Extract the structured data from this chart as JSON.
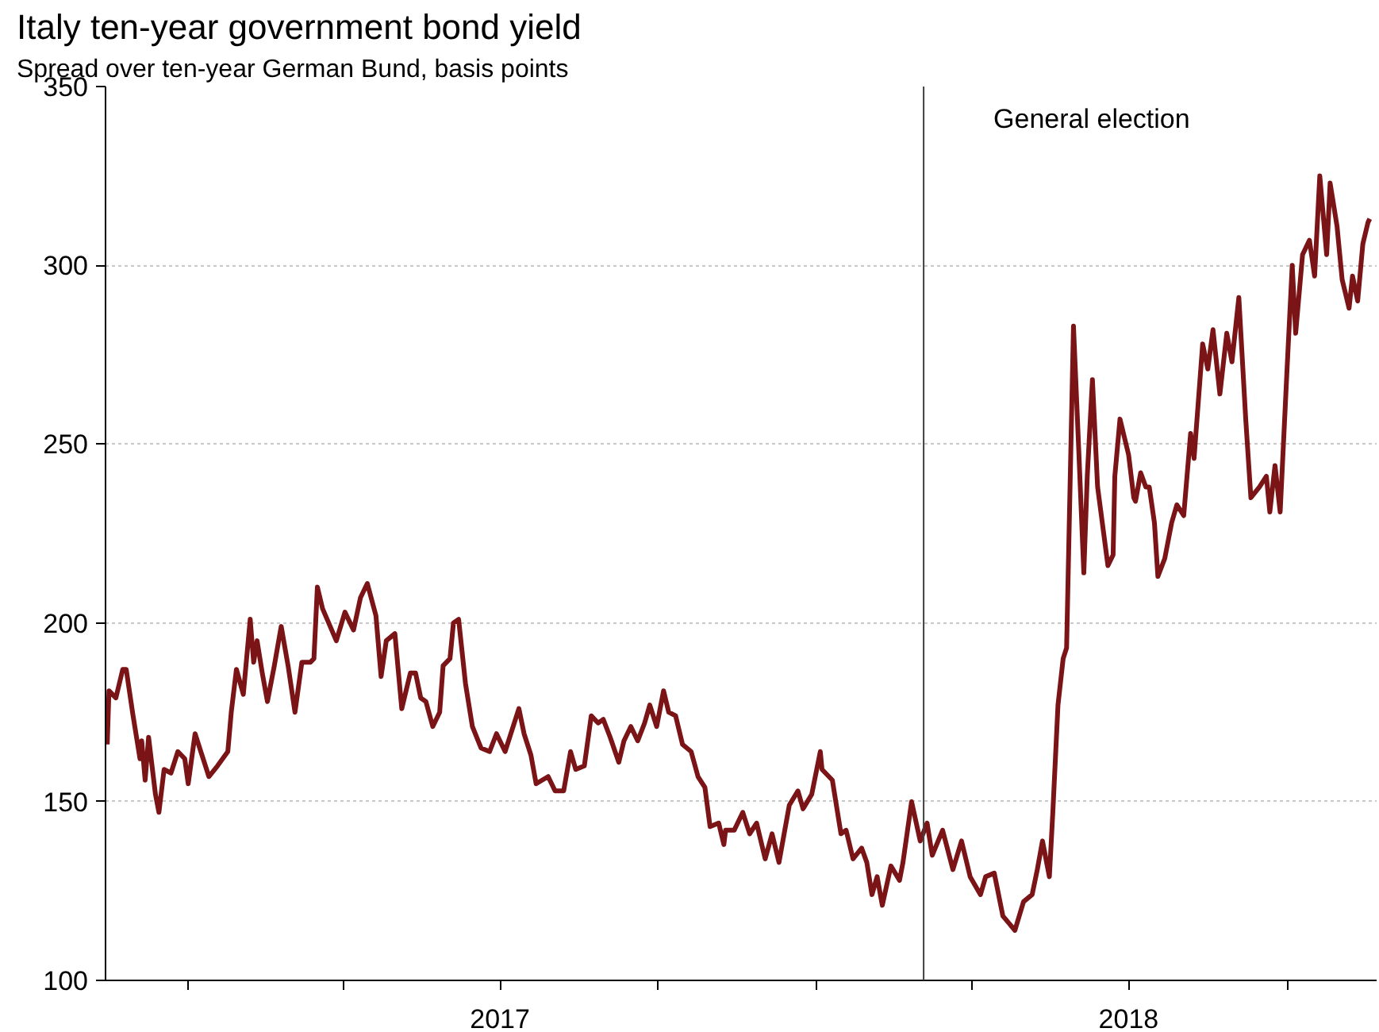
{
  "chart_data": {
    "type": "line",
    "title": "Italy ten-year government bond yield",
    "subtitle": "Spread over ten-year German Bund, basis points",
    "x": [
      "2016-11-15",
      "2016-11-16",
      "2016-11-20",
      "2016-11-24",
      "2016-11-26",
      "2016-11-30",
      "2016-12-04",
      "2016-12-05",
      "2016-12-07",
      "2016-12-09",
      "2016-12-13",
      "2016-12-15",
      "2016-12-18",
      "2016-12-22",
      "2016-12-26",
      "2016-12-30",
      "2017-01-01",
      "2017-01-05",
      "2017-01-09",
      "2017-01-13",
      "2017-01-18",
      "2017-01-24",
      "2017-01-26",
      "2017-01-29",
      "2017-02-02",
      "2017-02-06",
      "2017-02-08",
      "2017-02-10",
      "2017-02-13",
      "2017-02-16",
      "2017-02-20",
      "2017-02-24",
      "2017-02-28",
      "2017-03-04",
      "2017-03-08",
      "2017-03-13",
      "2017-03-15",
      "2017-03-17",
      "2017-03-20",
      "2017-03-28",
      "2017-04-02",
      "2017-04-07",
      "2017-04-11",
      "2017-04-15",
      "2017-04-20",
      "2017-04-23",
      "2017-04-26",
      "2017-05-01",
      "2017-05-05",
      "2017-05-10",
      "2017-05-13",
      "2017-05-16",
      "2017-05-19",
      "2017-05-23",
      "2017-05-27",
      "2017-05-29",
      "2017-06-02",
      "2017-06-04",
      "2017-06-07",
      "2017-06-11",
      "2017-06-15",
      "2017-06-20",
      "2017-06-25",
      "2017-06-29",
      "2017-07-04",
      "2017-07-12",
      "2017-07-15",
      "2017-07-19",
      "2017-07-22",
      "2017-07-29",
      "2017-08-02",
      "2017-08-07",
      "2017-08-11",
      "2017-08-14",
      "2017-08-19",
      "2017-08-23",
      "2017-08-27",
      "2017-08-30",
      "2017-09-03",
      "2017-09-08",
      "2017-09-11",
      "2017-09-15",
      "2017-09-19",
      "2017-09-23",
      "2017-09-26",
      "2017-09-30",
      "2017-10-04",
      "2017-10-07",
      "2017-10-11",
      "2017-10-15",
      "2017-10-20",
      "2017-10-24",
      "2017-10-28",
      "2017-10-31",
      "2017-11-05",
      "2017-11-08",
      "2017-11-09",
      "2017-11-14",
      "2017-11-19",
      "2017-11-23",
      "2017-11-27",
      "2017-12-02",
      "2017-12-06",
      "2017-12-10",
      "2017-12-16",
      "2017-12-21",
      "2017-12-24",
      "2017-12-29",
      "2018-01-03",
      "2018-01-04",
      "2018-01-10",
      "2018-01-15",
      "2018-01-18",
      "2018-01-22",
      "2018-01-27",
      "2018-01-30",
      "2018-02-02",
      "2018-02-05",
      "2018-02-08",
      "2018-02-13",
      "2018-02-18",
      "2018-02-20",
      "2018-02-25",
      "2018-03-02",
      "2018-03-06",
      "2018-03-09",
      "2018-03-15",
      "2018-03-21",
      "2018-03-26",
      "2018-03-31",
      "2018-04-06",
      "2018-04-09",
      "2018-04-14",
      "2018-04-19",
      "2018-04-26",
      "2018-05-01",
      "2018-05-06",
      "2018-05-09",
      "2018-05-12",
      "2018-05-16",
      "2018-05-18",
      "2018-05-21",
      "2018-05-24",
      "2018-05-26",
      "2018-05-30",
      "2018-06-02",
      "2018-06-05",
      "2018-06-07",
      "2018-06-10",
      "2018-06-13",
      "2018-06-19",
      "2018-06-22",
      "2018-06-23",
      "2018-06-26",
      "2018-07-01",
      "2018-07-04",
      "2018-07-05",
      "2018-07-08",
      "2018-07-11",
      "2018-07-13",
      "2018-07-16",
      "2018-07-18",
      "2018-07-22",
      "2018-07-26",
      "2018-07-29",
      "2018-08-02",
      "2018-08-06",
      "2018-08-08",
      "2018-08-13",
      "2018-08-16",
      "2018-08-19",
      "2018-08-23",
      "2018-08-27",
      "2018-08-30",
      "2018-09-03",
      "2018-09-07",
      "2018-09-10",
      "2018-09-15",
      "2018-09-19",
      "2018-09-21",
      "2018-09-24",
      "2018-09-27",
      "2018-10-01",
      "2018-10-04",
      "2018-10-06",
      "2018-10-10",
      "2018-10-14",
      "2018-10-17",
      "2018-10-20",
      "2018-10-24",
      "2018-10-26",
      "2018-10-30",
      "2018-11-02",
      "2018-11-06",
      "2018-11-08",
      "2018-11-11",
      "2018-11-14",
      "2018-11-17",
      "2018-11-18"
    ],
    "series": [
      {
        "color": "#7b1416",
        "values": [
          166,
          181,
          179,
          187,
          187,
          174,
          162,
          167,
          156,
          168,
          152,
          147,
          159,
          158,
          164,
          162,
          155,
          169,
          163,
          157,
          160,
          164,
          175,
          187,
          180,
          201,
          189,
          195,
          186,
          178,
          188,
          199,
          188,
          175,
          189,
          189,
          190,
          210,
          204,
          195,
          203,
          198,
          207,
          211,
          202,
          185,
          195,
          197,
          176,
          186,
          186,
          179,
          178,
          171,
          175,
          188,
          190,
          200,
          201,
          183,
          171,
          165,
          164,
          169,
          164,
          176,
          169,
          163,
          155,
          157,
          153,
          153,
          164,
          159,
          160,
          174,
          172,
          173,
          168,
          161,
          167,
          171,
          167,
          172,
          177,
          171,
          181,
          175,
          174,
          166,
          164,
          157,
          154,
          143,
          144,
          138,
          142,
          142,
          147,
          141,
          144,
          134,
          141,
          133,
          149,
          153,
          148,
          152,
          164,
          159,
          156,
          141,
          142,
          134,
          137,
          133,
          124,
          129,
          121,
          132,
          128,
          133,
          150,
          139,
          144,
          135,
          142,
          131,
          139,
          129,
          124,
          129,
          130,
          118,
          114,
          122,
          124,
          131,
          139,
          129,
          147,
          177,
          190,
          193,
          283,
          249,
          214,
          241,
          268,
          238,
          216,
          219,
          241,
          257,
          247,
          235,
          234,
          242,
          238,
          238,
          228,
          213,
          218,
          228,
          233,
          230,
          253,
          246,
          278,
          271,
          282,
          264,
          281,
          273,
          291,
          257,
          235,
          238,
          241,
          231,
          244,
          231,
          271,
          300,
          281,
          303,
          307,
          297,
          325,
          303,
          323,
          311,
          296,
          288,
          297,
          290,
          306,
          312,
          313
        ]
      }
    ],
    "xlim": [
      "2016-11-14",
      "2018-11-22"
    ],
    "ylim": [
      100,
      350
    ],
    "yticks": [
      100,
      150,
      200,
      250,
      300,
      350
    ],
    "xticks": [
      {
        "value": "2017-01-01",
        "label": null
      },
      {
        "value": "2017-04-01",
        "label": null
      },
      {
        "value": "2017-07-01",
        "label": "2017"
      },
      {
        "value": "2017-10-01",
        "label": null
      },
      {
        "value": "2018-01-01",
        "label": null
      },
      {
        "value": "2018-04-01",
        "label": null
      },
      {
        "value": "2018-07-01",
        "label": "2018"
      },
      {
        "value": "2018-10-01",
        "label": null
      }
    ],
    "ref_lines": [
      {
        "axis": "x",
        "value": "2018-03-04",
        "label": "General election",
        "color": "#404040"
      }
    ],
    "grid": "y",
    "line_style": "solid"
  }
}
